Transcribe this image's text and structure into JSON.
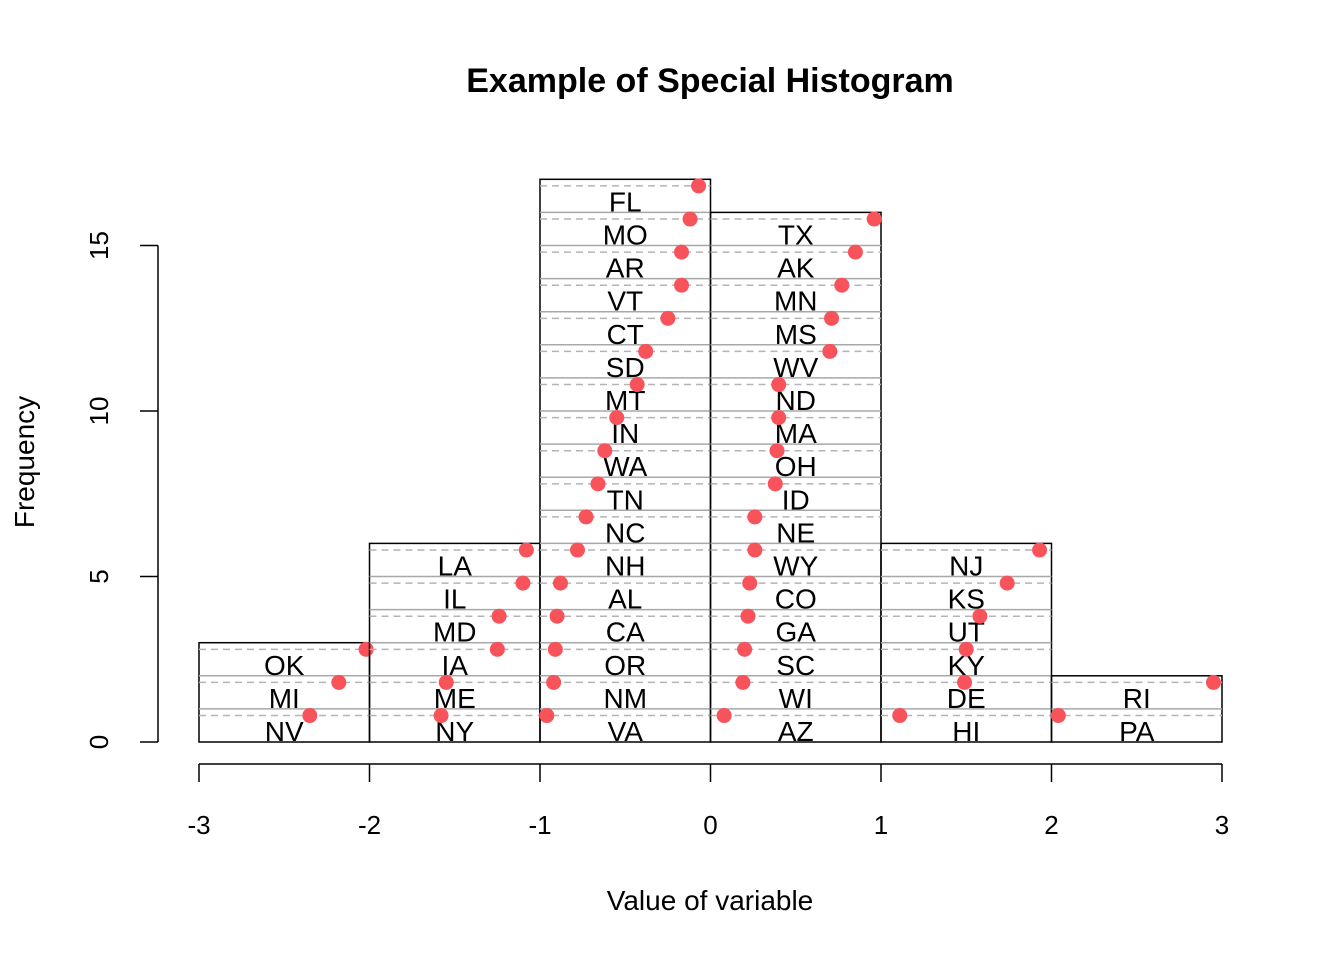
{
  "chart_data": {
    "type": "bar",
    "title": "Example of Special Histogram",
    "xlabel": "Value of variable",
    "ylabel": "Frequency",
    "xlim": [
      -3,
      3
    ],
    "ylim": [
      0,
      17
    ],
    "x_ticks": [
      "-3",
      "-2",
      "-1",
      "0",
      "1",
      "2",
      "3"
    ],
    "y_ticks": [
      "0",
      "5",
      "10",
      "15"
    ],
    "point_color": "#f8535a",
    "bins": [
      {
        "range": [
          -3,
          -2
        ],
        "count": 3,
        "states": [
          {
            "label": "NV",
            "value": -2.35
          },
          {
            "label": "MI",
            "value": -2.18
          },
          {
            "label": "OK",
            "value": -2.02
          }
        ]
      },
      {
        "range": [
          -2,
          -1
        ],
        "count": 6,
        "states": [
          {
            "label": "NY",
            "value": -1.58
          },
          {
            "label": "ME",
            "value": -1.55
          },
          {
            "label": "IA",
            "value": -1.25
          },
          {
            "label": "MD",
            "value": -1.24
          },
          {
            "label": "IL",
            "value": -1.1
          },
          {
            "label": "LA",
            "value": -1.08
          }
        ]
      },
      {
        "range": [
          -1,
          0
        ],
        "count": 17,
        "states": [
          {
            "label": "VA",
            "value": -0.96
          },
          {
            "label": "NM",
            "value": -0.92
          },
          {
            "label": "OR",
            "value": -0.91
          },
          {
            "label": "CA",
            "value": -0.9
          },
          {
            "label": "AL",
            "value": -0.88
          },
          {
            "label": "NH",
            "value": -0.78
          },
          {
            "label": "NC",
            "value": -0.73
          },
          {
            "label": "TN",
            "value": -0.66
          },
          {
            "label": "WA",
            "value": -0.62
          },
          {
            "label": "IN",
            "value": -0.55
          },
          {
            "label": "MT",
            "value": -0.43
          },
          {
            "label": "SD",
            "value": -0.38
          },
          {
            "label": "CT",
            "value": -0.25
          },
          {
            "label": "VT",
            "value": -0.17
          },
          {
            "label": "AR",
            "value": -0.17
          },
          {
            "label": "MO",
            "value": -0.12
          },
          {
            "label": "FL",
            "value": -0.07
          }
        ]
      },
      {
        "range": [
          0,
          1
        ],
        "count": 16,
        "states": [
          {
            "label": "AZ",
            "value": 0.08
          },
          {
            "label": "WI",
            "value": 0.19
          },
          {
            "label": "SC",
            "value": 0.2
          },
          {
            "label": "GA",
            "value": 0.22
          },
          {
            "label": "CO",
            "value": 0.23
          },
          {
            "label": "WY",
            "value": 0.26
          },
          {
            "label": "NE",
            "value": 0.26
          },
          {
            "label": "ID",
            "value": 0.38
          },
          {
            "label": "OH",
            "value": 0.39
          },
          {
            "label": "MA",
            "value": 0.4
          },
          {
            "label": "ND",
            "value": 0.4
          },
          {
            "label": "WV",
            "value": 0.7
          },
          {
            "label": "MS",
            "value": 0.71
          },
          {
            "label": "MN",
            "value": 0.77
          },
          {
            "label": "AK",
            "value": 0.85
          },
          {
            "label": "TX",
            "value": 0.96
          }
        ]
      },
      {
        "range": [
          1,
          2
        ],
        "count": 6,
        "states": [
          {
            "label": "HI",
            "value": 1.11
          },
          {
            "label": "DE",
            "value": 1.49
          },
          {
            "label": "KY",
            "value": 1.5
          },
          {
            "label": "UT",
            "value": 1.58
          },
          {
            "label": "KS",
            "value": 1.74
          },
          {
            "label": "NJ",
            "value": 1.93
          }
        ]
      },
      {
        "range": [
          2,
          3
        ],
        "count": 2,
        "states": [
          {
            "label": "PA",
            "value": 2.04
          },
          {
            "label": "RI",
            "value": 2.95
          }
        ]
      }
    ]
  }
}
